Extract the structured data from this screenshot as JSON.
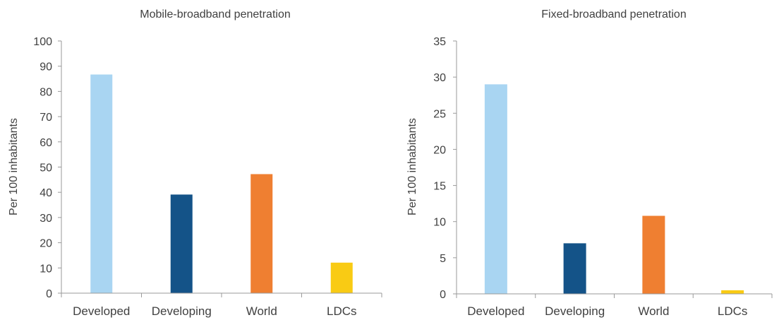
{
  "chart_data": [
    {
      "type": "bar",
      "title": "Mobile-broadband penetration",
      "xlabel": "",
      "ylabel": "Per 100 inhabitants",
      "categories": [
        "Developed",
        "Developing",
        "World",
        "LDCs"
      ],
      "values": [
        86.7,
        39.1,
        47.2,
        12.1
      ],
      "colors": [
        "#a9d5f2",
        "#145388",
        "#ef7f31",
        "#f9cb14"
      ],
      "ylim": [
        0,
        100
      ],
      "yticks": [
        0,
        10,
        20,
        30,
        40,
        50,
        60,
        70,
        80,
        90,
        100
      ],
      "grid": false,
      "legend": "none"
    },
    {
      "type": "bar",
      "title": "Fixed-broadband penetration",
      "xlabel": "",
      "ylabel": "Per 100 inhabitants",
      "categories": [
        "Developed",
        "Developing",
        "World",
        "LDCs"
      ],
      "values": [
        29.0,
        7.0,
        10.8,
        0.5
      ],
      "colors": [
        "#a9d5f2",
        "#145388",
        "#ef7f31",
        "#f9cb14"
      ],
      "ylim": [
        0,
        35
      ],
      "yticks": [
        0,
        5,
        10,
        15,
        20,
        25,
        30,
        35
      ],
      "grid": false,
      "legend": "none"
    }
  ]
}
